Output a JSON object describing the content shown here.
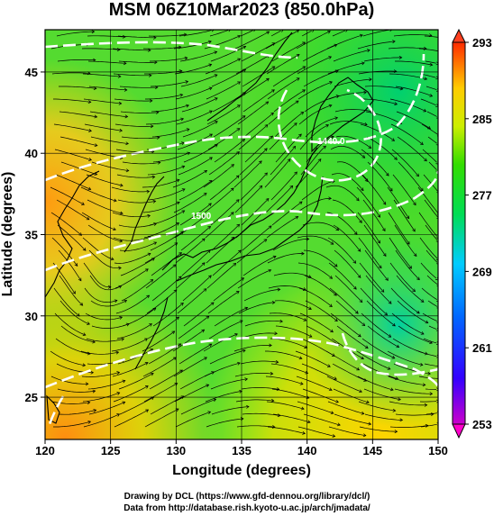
{
  "title": "MSM 06Z10Mar2023 (850.0hPa)",
  "x_axis": {
    "label": "Longitude (degrees)",
    "range": [
      120,
      150
    ],
    "ticks": [
      "120",
      "125",
      "130",
      "135",
      "140",
      "145",
      "150"
    ]
  },
  "y_axis": {
    "label": "Latitude  (degrees)",
    "range": [
      22.4,
      47.6
    ],
    "ticks": [
      "25",
      "30",
      "35",
      "40",
      "45"
    ]
  },
  "colorbar": {
    "range": [
      253,
      293
    ],
    "ticks": [
      "253",
      "261",
      "269",
      "277",
      "285",
      "293"
    ]
  },
  "contour_labels": [
    "1440.0",
    "1500"
  ],
  "credits": {
    "line1": "Drawing by DCL (https://www.gfd-dennou.org/library/dcl/)",
    "line2": "Data from http://database.rish.kyoto-u.ac.jp/arch/jmadata/"
  },
  "colors": {
    "cold": "#cc00cc",
    "cool": "#00bfff",
    "mid": "#00dd33",
    "warm": "#ffd000",
    "hot": "#ff2a00",
    "contour": "#ffffff",
    "streamline": "#000000"
  }
}
